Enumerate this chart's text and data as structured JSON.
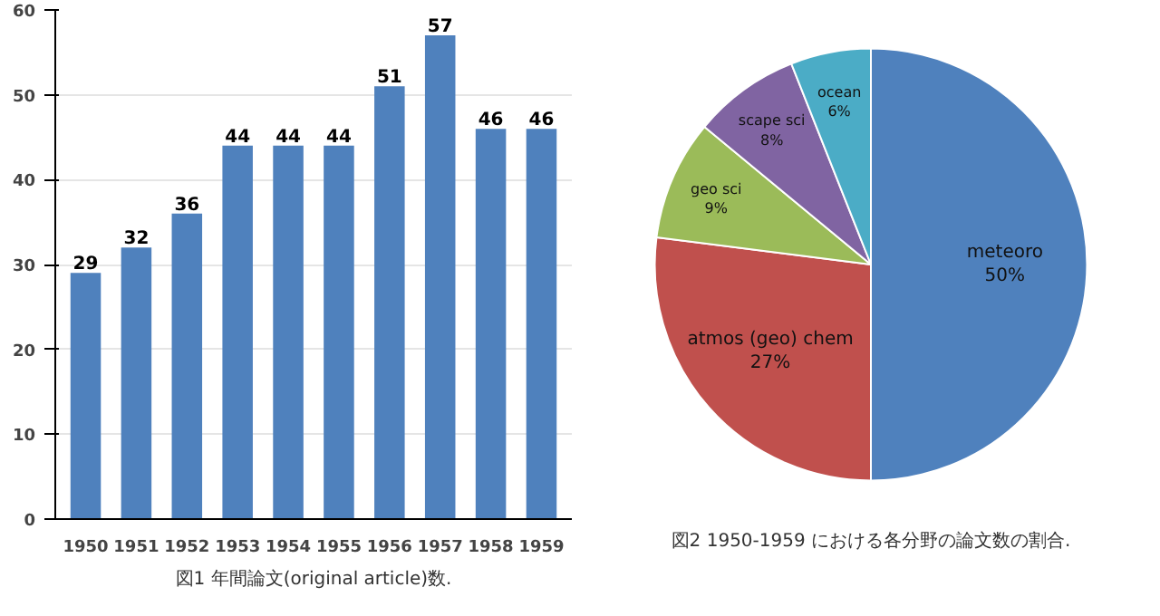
{
  "chart_data": [
    {
      "type": "bar",
      "categories": [
        "1950",
        "1951",
        "1952",
        "1953",
        "1954",
        "1955",
        "1956",
        "1957",
        "1958",
        "1959"
      ],
      "values": [
        29,
        32,
        36,
        44,
        44,
        44,
        51,
        57,
        46,
        46
      ],
      "color": "#4f81bd",
      "ylim": [
        0,
        60
      ],
      "yticks": [
        0,
        10,
        20,
        30,
        40,
        50,
        60
      ],
      "grid": "y",
      "data_labels": true,
      "annotations": [
        "図1 年間論文(original article)数."
      ]
    },
    {
      "type": "pie",
      "categories": [
        "meteoro",
        "atmos (geo) chem",
        "geo sci",
        "scape sci",
        "ocean"
      ],
      "values": [
        50,
        27,
        9,
        8,
        6
      ],
      "colors": [
        "#4f81bd",
        "#c0504d",
        "#9bbb59",
        "#8064a2",
        "#4bacc6"
      ],
      "value_labels": [
        "50%",
        "27%",
        "9%",
        "8%",
        "6%"
      ],
      "annotations": [
        "図2 1950-1959 における各分野の論文数の割合."
      ]
    }
  ]
}
